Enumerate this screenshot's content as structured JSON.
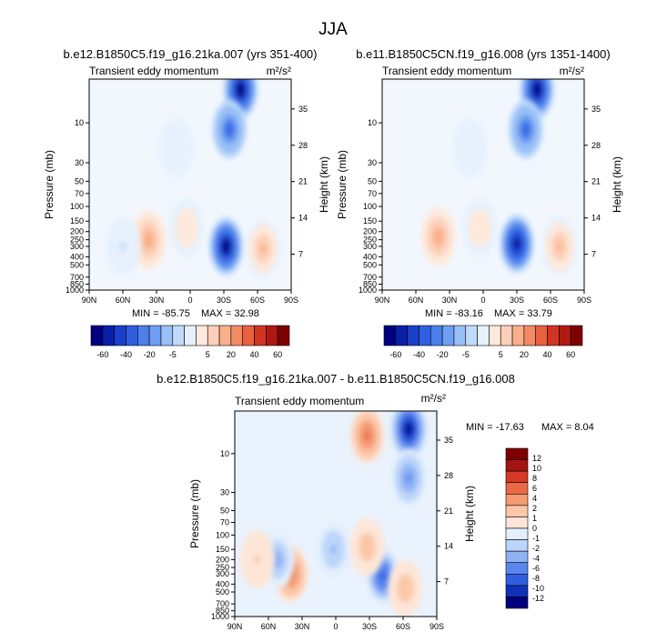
{
  "figure_title": "JJA",
  "shared": {
    "y_tick_labels": [
      "10",
      "30",
      "50",
      "70",
      "100",
      "150",
      "200",
      "250",
      "300",
      "400",
      "500",
      "700",
      "850",
      "1000"
    ],
    "x_tick_labels": [
      "90N",
      "60N",
      "30N",
      "0",
      "30S",
      "60S",
      "90S"
    ],
    "height_tick_labels": [
      "35",
      "28",
      "21",
      "14",
      "7"
    ],
    "ylabel": "Pressure (mb)",
    "right_label": "Height (km)",
    "units": "m²/s²"
  },
  "colors": {
    "main_scale": [
      "#00007f",
      "#0a1fa8",
      "#1a3fcc",
      "#2f5fe0",
      "#4a7fec",
      "#6f9ff2",
      "#98bff6",
      "#c0dbfa",
      "#e6f1fd",
      "#fde9dc",
      "#fcd0b8",
      "#faaf8c",
      "#f38a64",
      "#e9603f",
      "#d23422",
      "#b01812",
      "#7f0000"
    ],
    "diff_scale": [
      "#00007f",
      "#1030b8",
      "#2f5fe0",
      "#5a86ee",
      "#8fb2f4",
      "#bcd5fa",
      "#e3effd",
      "#fde6d8",
      "#fbc7a8",
      "#f59a72",
      "#ea6a45",
      "#d43a25",
      "#a21510",
      "#7f0000"
    ]
  },
  "chart_data": [
    {
      "type": "heatmap",
      "title": "b.e12.B1850C5.f19_g16.21ka.007 (yrs 351-400)",
      "variable": "Transient eddy momentum",
      "units": "m²/s²",
      "min_text": "MIN = -85.75",
      "max_text": "MAX = 32.98",
      "x": [
        90,
        -90
      ],
      "y_pressure_mb": [
        1000,
        3
      ],
      "features": [
        {
          "lat": -45,
          "p_mb": 4,
          "value": -85
        },
        {
          "lat": -35,
          "p_mb": 12,
          "value": -50
        },
        {
          "lat": -32,
          "p_mb": 300,
          "value": -85
        },
        {
          "lat": 37,
          "p_mb": 250,
          "value": 33
        },
        {
          "lat": 3,
          "p_mb": 180,
          "value": 12
        },
        {
          "lat": -65,
          "p_mb": 320,
          "value": 30
        },
        {
          "lat": 12,
          "p_mb": 20,
          "value": -4
        },
        {
          "lat": 60,
          "p_mb": 300,
          "value": -6
        }
      ]
    },
    {
      "type": "heatmap",
      "title": "b.e11.B1850C5CN.f19_g16.008 (yrs 1351-1400)",
      "variable": "Transient eddy momentum",
      "units": "m²/s²",
      "min_text": "MIN = -83.16",
      "max_text": "MAX = 33.79",
      "x": [
        90,
        -90
      ],
      "y_pressure_mb": [
        1000,
        3
      ],
      "features": [
        {
          "lat": -48,
          "p_mb": 4,
          "value": -83
        },
        {
          "lat": -38,
          "p_mb": 12,
          "value": -50
        },
        {
          "lat": -30,
          "p_mb": 280,
          "value": -82
        },
        {
          "lat": 40,
          "p_mb": 230,
          "value": 34
        },
        {
          "lat": 3,
          "p_mb": 180,
          "value": 12
        },
        {
          "lat": -68,
          "p_mb": 300,
          "value": 30
        },
        {
          "lat": 12,
          "p_mb": 20,
          "value": -4
        }
      ]
    },
    {
      "type": "heatmap",
      "title": "b.e12.B1850C5.f19_g16.21ka.007 - b.e11.B1850C5CN.f19_g16.008",
      "variable": "Transient eddy momentum",
      "units": "m²/s²",
      "min_text": "MIN = -17.63",
      "max_text": "MAX = 8.04",
      "x": [
        90,
        -90
      ],
      "y_pressure_mb": [
        1000,
        3
      ],
      "features": [
        {
          "lat": -65,
          "p_mb": 5,
          "value": -17
        },
        {
          "lat": -65,
          "p_mb": 20,
          "value": -8
        },
        {
          "lat": -28,
          "p_mb": 6,
          "value": 8
        },
        {
          "lat": -42,
          "p_mb": 320,
          "value": -12
        },
        {
          "lat": 40,
          "p_mb": 300,
          "value": 8
        },
        {
          "lat": 52,
          "p_mb": 200,
          "value": -7
        },
        {
          "lat": 2,
          "p_mb": 150,
          "value": -6
        },
        {
          "lat": -28,
          "p_mb": 140,
          "value": 5
        },
        {
          "lat": -62,
          "p_mb": 450,
          "value": 4
        },
        {
          "lat": 70,
          "p_mb": 200,
          "value": 3
        }
      ]
    }
  ],
  "legend_main": {
    "labels": [
      "-60",
      "-40",
      "-20",
      "-5",
      "5",
      "20",
      "40",
      "60"
    ]
  },
  "legend_diff": {
    "labels": [
      "12",
      "10",
      "8",
      "6",
      "4",
      "2",
      "1",
      "0",
      "-1",
      "-2",
      "-4",
      "-6",
      "-8",
      "-10",
      "-12"
    ]
  }
}
